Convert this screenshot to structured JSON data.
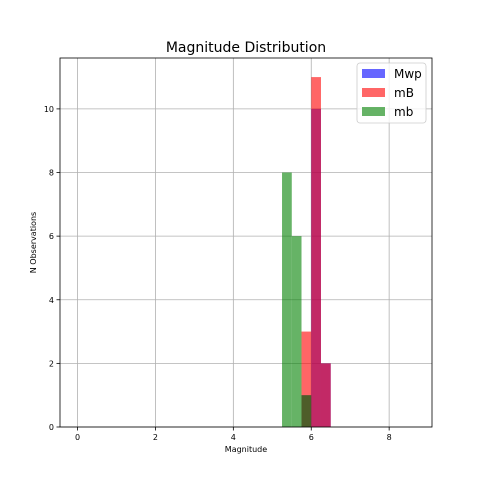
{
  "chart_data": {
    "type": "bar",
    "title": "Magnitude Distribution",
    "xlabel": "Magnitude",
    "ylabel": "N Observations",
    "xlim": [
      -0.45,
      9.1
    ],
    "ylim": [
      0,
      11.6
    ],
    "xticks": [
      "0",
      "2",
      "4",
      "6",
      "8"
    ],
    "yticks": [
      "0",
      "2",
      "4",
      "6",
      "8",
      "10"
    ],
    "grid": true,
    "legend_position": "top-right",
    "bin_width": 0.25,
    "series": [
      {
        "name": "Mwp",
        "color": "#0000ff",
        "opacity": 0.6,
        "bins": [
          {
            "x0": 5.75,
            "x1": 6.0,
            "count": 1
          },
          {
            "x0": 6.0,
            "x1": 6.25,
            "count": 10
          },
          {
            "x0": 6.25,
            "x1": 6.5,
            "count": 2
          }
        ]
      },
      {
        "name": "mB",
        "color": "#ff0000",
        "opacity": 0.6,
        "bins": [
          {
            "x0": 5.75,
            "x1": 6.0,
            "count": 3
          },
          {
            "x0": 6.0,
            "x1": 6.25,
            "count": 11
          },
          {
            "x0": 6.25,
            "x1": 6.5,
            "count": 2
          }
        ]
      },
      {
        "name": "mb",
        "color": "#008000",
        "opacity": 0.6,
        "bins": [
          {
            "x0": 5.25,
            "x1": 5.5,
            "count": 8
          },
          {
            "x0": 5.5,
            "x1": 5.75,
            "count": 6
          },
          {
            "x0": 5.75,
            "x1": 6.0,
            "count": 1
          }
        ]
      }
    ]
  }
}
